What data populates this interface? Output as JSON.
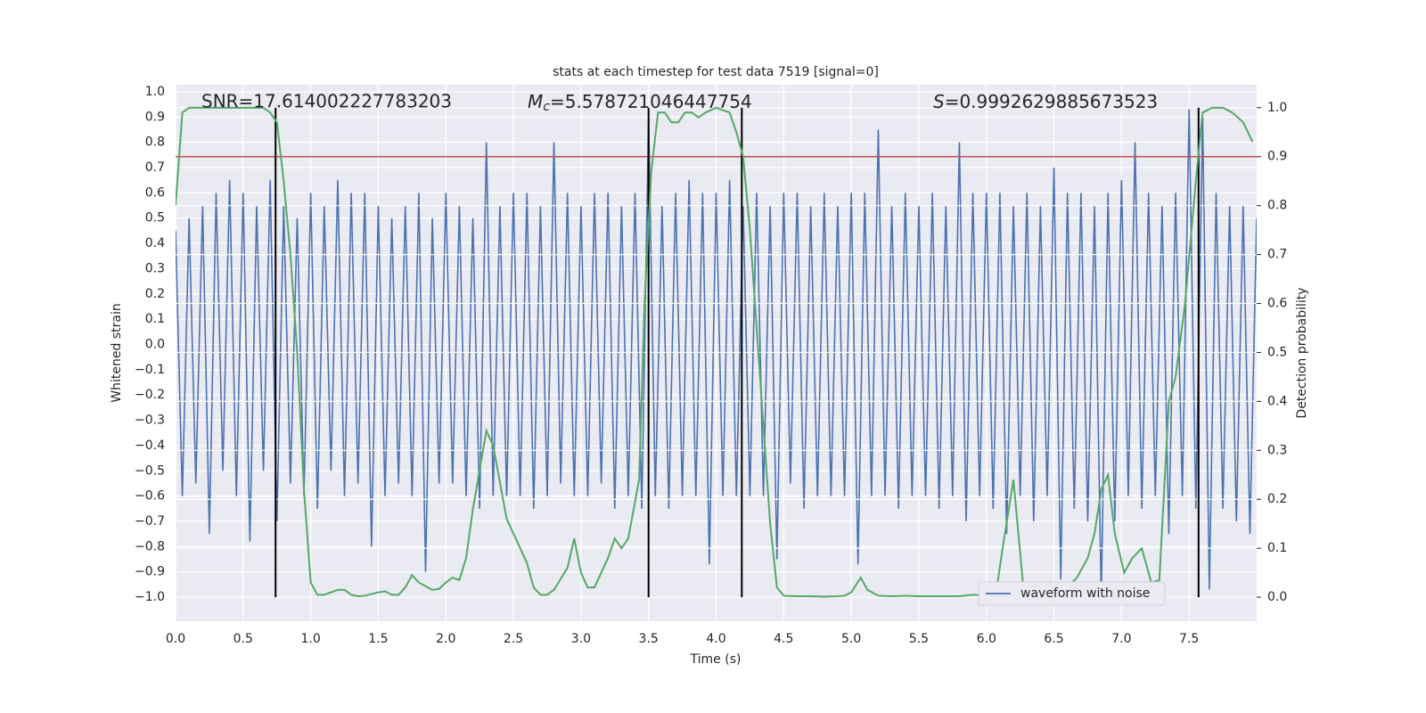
{
  "chart_data": {
    "type": "line",
    "title": "stats at each timestep for test data 7519 [signal=0]",
    "xlabel": "Time (s)",
    "ylabel": "Whitened strain",
    "y2label": "Detection probability",
    "annotations": [
      {
        "text": "SNR=17.614002227783203"
      },
      {
        "symbol": "M",
        "subscript": "c",
        "text": "=5.578721046447754"
      },
      {
        "symbol": "S",
        "text": "=0.9992629885673523"
      }
    ],
    "xlim": [
      0,
      8
    ],
    "xticks": [
      {
        "value": 0,
        "label": "0.0"
      },
      0.5,
      {
        "value": 1,
        "label": "1.0"
      },
      1.5,
      {
        "value": 2,
        "label": "2.0"
      },
      2.5,
      {
        "value": 3,
        "label": "3.0"
      },
      3.5,
      {
        "value": 4,
        "label": "4.0"
      },
      4.5,
      {
        "value": 5,
        "label": "5.0"
      },
      5.5,
      {
        "value": 6,
        "label": "6.0"
      },
      6.5,
      {
        "value": 7,
        "label": "7.0"
      },
      7.5
    ],
    "ylim": [
      -1.095,
      1.028
    ],
    "yticks": [
      {
        "value": -1,
        "label": "−1.0"
      },
      {
        "value": -0.9,
        "label": "−0.9"
      },
      {
        "value": -0.8,
        "label": "−0.8"
      },
      {
        "value": -0.7,
        "label": "−0.7"
      },
      {
        "value": -0.6,
        "label": "−0.6"
      },
      {
        "value": -0.5,
        "label": "−0.5"
      },
      {
        "value": -0.4,
        "label": "−0.4"
      },
      {
        "value": -0.3,
        "label": "−0.3"
      },
      {
        "value": -0.2,
        "label": "−0.2"
      },
      {
        "value": -0.1,
        "label": "−0.1"
      },
      {
        "value": 0,
        "label": "0.0"
      },
      0.1,
      0.2,
      0.3,
      0.4,
      0.5,
      0.6,
      0.7,
      0.8,
      0.9,
      {
        "value": 1,
        "label": "1.0"
      }
    ],
    "y2lim": [
      -0.049,
      1.047
    ],
    "y2ticks": [
      {
        "value": 0,
        "label": "0.0"
      },
      0.1,
      0.2,
      0.3,
      0.4,
      0.5,
      0.6,
      0.7,
      0.8,
      0.9,
      {
        "value": 1,
        "label": "1.0"
      }
    ],
    "grid": true,
    "legend": "lower right",
    "series": [
      {
        "name": "waveform with noise",
        "color": "#4c72b0",
        "x": [
          0,
          0.05,
          0.1,
          0.15,
          0.2,
          0.25,
          0.3,
          0.35,
          0.4,
          0.45,
          0.5,
          0.55,
          0.6,
          0.65,
          0.7,
          0.75,
          0.8,
          0.85,
          0.9,
          0.95,
          1,
          1.05,
          1.1,
          1.15,
          1.2,
          1.25,
          1.3,
          1.35,
          1.4,
          1.45,
          1.5,
          1.55,
          1.6,
          1.65,
          1.7,
          1.75,
          1.8,
          1.85,
          1.9,
          1.95,
          2,
          2.05,
          2.1,
          2.15,
          2.2,
          2.25,
          2.3,
          2.35,
          2.4,
          2.45,
          2.5,
          2.55,
          2.6,
          2.65,
          2.7,
          2.75,
          2.8,
          2.85,
          2.9,
          2.95,
          3,
          3.05,
          3.1,
          3.15,
          3.2,
          3.25,
          3.3,
          3.35,
          3.4,
          3.45,
          3.5,
          3.55,
          3.6,
          3.65,
          3.7,
          3.75,
          3.8,
          3.85,
          3.9,
          3.95,
          4,
          4.05,
          4.1,
          4.15,
          4.2,
          4.25,
          4.3,
          4.35,
          4.4,
          4.45,
          4.5,
          4.55,
          4.6,
          4.65,
          4.7,
          4.75,
          4.8,
          4.85,
          4.9,
          4.95,
          5,
          5.05,
          5.1,
          5.15,
          5.2,
          5.25,
          5.3,
          5.35,
          5.4,
          5.45,
          5.5,
          5.55,
          5.6,
          5.65,
          5.7,
          5.75,
          5.8,
          5.85,
          5.9,
          5.95,
          6,
          6.05,
          6.1,
          6.15,
          6.2,
          6.25,
          6.3,
          6.35,
          6.4,
          6.45,
          6.5,
          6.55,
          6.6,
          6.65,
          6.7,
          6.75,
          6.8,
          6.85,
          6.9,
          6.95,
          7,
          7.05,
          7.1,
          7.15,
          7.2,
          7.25,
          7.3,
          7.35,
          7.4,
          7.45,
          7.5,
          7.55,
          7.6,
          7.65,
          7.7,
          7.75,
          7.8,
          7.85,
          7.9,
          7.95,
          8
        ],
        "values": [
          0.45,
          -0.6,
          0.5,
          -0.55,
          0.55,
          -0.75,
          0.6,
          -0.5,
          0.65,
          -0.6,
          0.6,
          -0.78,
          0.55,
          -0.5,
          0.65,
          -0.7,
          0.55,
          -0.55,
          0.5,
          -0.6,
          0.6,
          -0.65,
          0.55,
          -0.5,
          0.65,
          -0.6,
          0.6,
          -0.55,
          0.6,
          -0.8,
          0.55,
          -0.6,
          0.5,
          -0.55,
          0.55,
          -0.6,
          0.6,
          -0.9,
          0.5,
          -0.55,
          0.6,
          -0.55,
          0.55,
          -0.6,
          0.5,
          -0.65,
          0.8,
          -0.6,
          0.55,
          -0.6,
          0.6,
          -0.6,
          0.6,
          -0.65,
          0.55,
          -0.6,
          0.8,
          -0.55,
          0.6,
          -0.6,
          0.55,
          -0.6,
          0.6,
          -0.55,
          0.6,
          -0.65,
          0.55,
          -0.6,
          0.6,
          -0.65,
          0.9,
          -0.6,
          0.55,
          -0.65,
          0.6,
          -0.6,
          0.65,
          -0.6,
          0.6,
          -0.87,
          0.6,
          -0.6,
          0.65,
          -0.6,
          0.55,
          -0.6,
          0.6,
          -0.6,
          0.55,
          -0.85,
          0.6,
          -0.55,
          0.6,
          -0.65,
          0.55,
          -0.6,
          0.6,
          -0.6,
          0.55,
          -0.6,
          0.6,
          -0.87,
          0.6,
          -0.6,
          0.85,
          -0.6,
          0.55,
          -0.65,
          0.6,
          -0.6,
          0.55,
          -0.6,
          0.6,
          -0.65,
          0.55,
          -0.6,
          0.8,
          -0.7,
          0.6,
          -0.6,
          0.6,
          -0.65,
          0.6,
          -0.75,
          0.55,
          -0.6,
          0.6,
          -0.7,
          0.55,
          -0.6,
          0.7,
          -0.93,
          0.6,
          -0.65,
          0.6,
          -0.7,
          0.55,
          -1.0,
          0.6,
          -0.7,
          0.65,
          -0.6,
          0.8,
          -0.65,
          0.6,
          -0.6,
          0.55,
          -0.75,
          0.6,
          -0.6,
          0.93,
          -0.65,
          0.9,
          -0.97,
          0.6,
          -0.65,
          0.55,
          -0.7,
          0.55,
          -0.75,
          0.5
        ]
      },
      {
        "color": "#55a868",
        "axis": "y2",
        "x": [
          0,
          0.05,
          0.1,
          0.2,
          0.3,
          0.4,
          0.5,
          0.6,
          0.65,
          0.7,
          0.75,
          0.8,
          0.85,
          0.9,
          0.95,
          1,
          1.05,
          1.1,
          1.2,
          1.25,
          1.3,
          1.35,
          1.4,
          1.5,
          1.55,
          1.6,
          1.65,
          1.7,
          1.75,
          1.8,
          1.9,
          1.95,
          2,
          2.05,
          2.1,
          2.15,
          2.2,
          2.3,
          2.35,
          2.45,
          2.6,
          2.65,
          2.7,
          2.75,
          2.8,
          2.9,
          2.95,
          3,
          3.05,
          3.1,
          3.2,
          3.25,
          3.3,
          3.35,
          3.43,
          3.47,
          3.52,
          3.57,
          3.62,
          3.67,
          3.72,
          3.77,
          3.82,
          3.87,
          3.92,
          4,
          4.1,
          4.15,
          4.2,
          4.25,
          4.3,
          4.35,
          4.4,
          4.45,
          4.5,
          4.6,
          4.7,
          4.8,
          4.9,
          4.95,
          5,
          5.07,
          5.12,
          5.2,
          5.3,
          5.4,
          5.5,
          5.6,
          5.7,
          5.8,
          5.9,
          6,
          6.07,
          6.12,
          6.2,
          6.27,
          6.32,
          6.4,
          6.47,
          6.52,
          6.6,
          6.67,
          6.75,
          6.8,
          6.85,
          6.9,
          6.95,
          7.02,
          7.08,
          7.15,
          7.22,
          7.28,
          7.35,
          7.4,
          7.47,
          7.55,
          7.6,
          7.67,
          7.75,
          7.82,
          7.9,
          7.97
        ],
        "values": [
          0.8,
          0.99,
          1.0,
          1.0,
          1.0,
          1.0,
          1.0,
          1.0,
          1.0,
          0.99,
          0.97,
          0.85,
          0.7,
          0.5,
          0.22,
          0.03,
          0.005,
          0.005,
          0.015,
          0.015,
          0.005,
          0.002,
          0.003,
          0.01,
          0.012,
          0.005,
          0.005,
          0.02,
          0.045,
          0.03,
          0.015,
          0.017,
          0.03,
          0.04,
          0.035,
          0.08,
          0.18,
          0.34,
          0.31,
          0.16,
          0.07,
          0.02,
          0.005,
          0.005,
          0.015,
          0.06,
          0.12,
          0.05,
          0.02,
          0.02,
          0.08,
          0.12,
          0.1,
          0.12,
          0.24,
          0.6,
          0.87,
          0.99,
          0.99,
          0.97,
          0.97,
          0.99,
          0.99,
          0.98,
          0.99,
          1.0,
          0.99,
          0.95,
          0.9,
          0.75,
          0.55,
          0.35,
          0.15,
          0.02,
          0.003,
          0.002,
          0.002,
          0.001,
          0.002,
          0.003,
          0.01,
          0.04,
          0.015,
          0.003,
          0.002,
          0.003,
          0.002,
          0.002,
          0.002,
          0.002,
          0.005,
          0.004,
          0.005,
          0.1,
          0.24,
          0.03,
          0.01,
          0.015,
          0.003,
          0.006,
          0.02,
          0.04,
          0.08,
          0.13,
          0.22,
          0.25,
          0.13,
          0.05,
          0.08,
          0.1,
          0.03,
          0.035,
          0.4,
          0.45,
          0.6,
          0.85,
          0.99,
          1.0,
          1.0,
          0.99,
          0.97,
          0.93
        ]
      }
    ],
    "hlines": [
      {
        "value": 0.9,
        "axis": "y2",
        "color": "#c44e52"
      }
    ],
    "vlines": {
      "x": [
        0.74,
        3.5,
        4.19,
        7.57
      ],
      "y2range": [
        0,
        1
      ],
      "color": "#000000"
    }
  }
}
